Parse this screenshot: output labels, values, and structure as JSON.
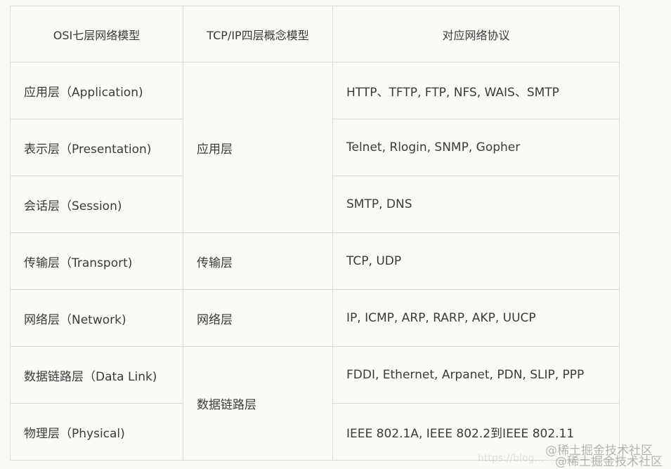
{
  "headers": [
    "OSI七层网络模型",
    "TCP/IP四层概念模型",
    "对应网络协议"
  ],
  "rows": [
    {
      "osi": "应用层（Application)",
      "protocols": "HTTP、TFTP, FTP, NFS, WAIS、SMTP"
    },
    {
      "osi": "表示层（Presentation)",
      "protocols": "Telnet, Rlogin, SNMP, Gopher"
    },
    {
      "osi": "会话层（Session)",
      "protocols": "SMTP, DNS"
    },
    {
      "osi": "传输层（Transport)",
      "protocols": "TCP, UDP"
    },
    {
      "osi": "网络层（Network)",
      "protocols": "IP, ICMP, ARP, RARP, AKP, UUCP"
    },
    {
      "osi": "数据链路层（Data Link)",
      "protocols": "FDDI, Ethernet, Arpanet, PDN, SLIP, PPP"
    },
    {
      "osi": "物理层（Physical)",
      "protocols": "IEEE 802.1A, IEEE 802.2到IEEE 802.11"
    }
  ],
  "tcpip": [
    "应用层",
    "传输层",
    "网络层",
    "数据链路层"
  ],
  "watermark": {
    "text1": "@稀土掘金技术社区",
    "text2": "@稀土掘金技术社区",
    "url": "https://blog..."
  }
}
